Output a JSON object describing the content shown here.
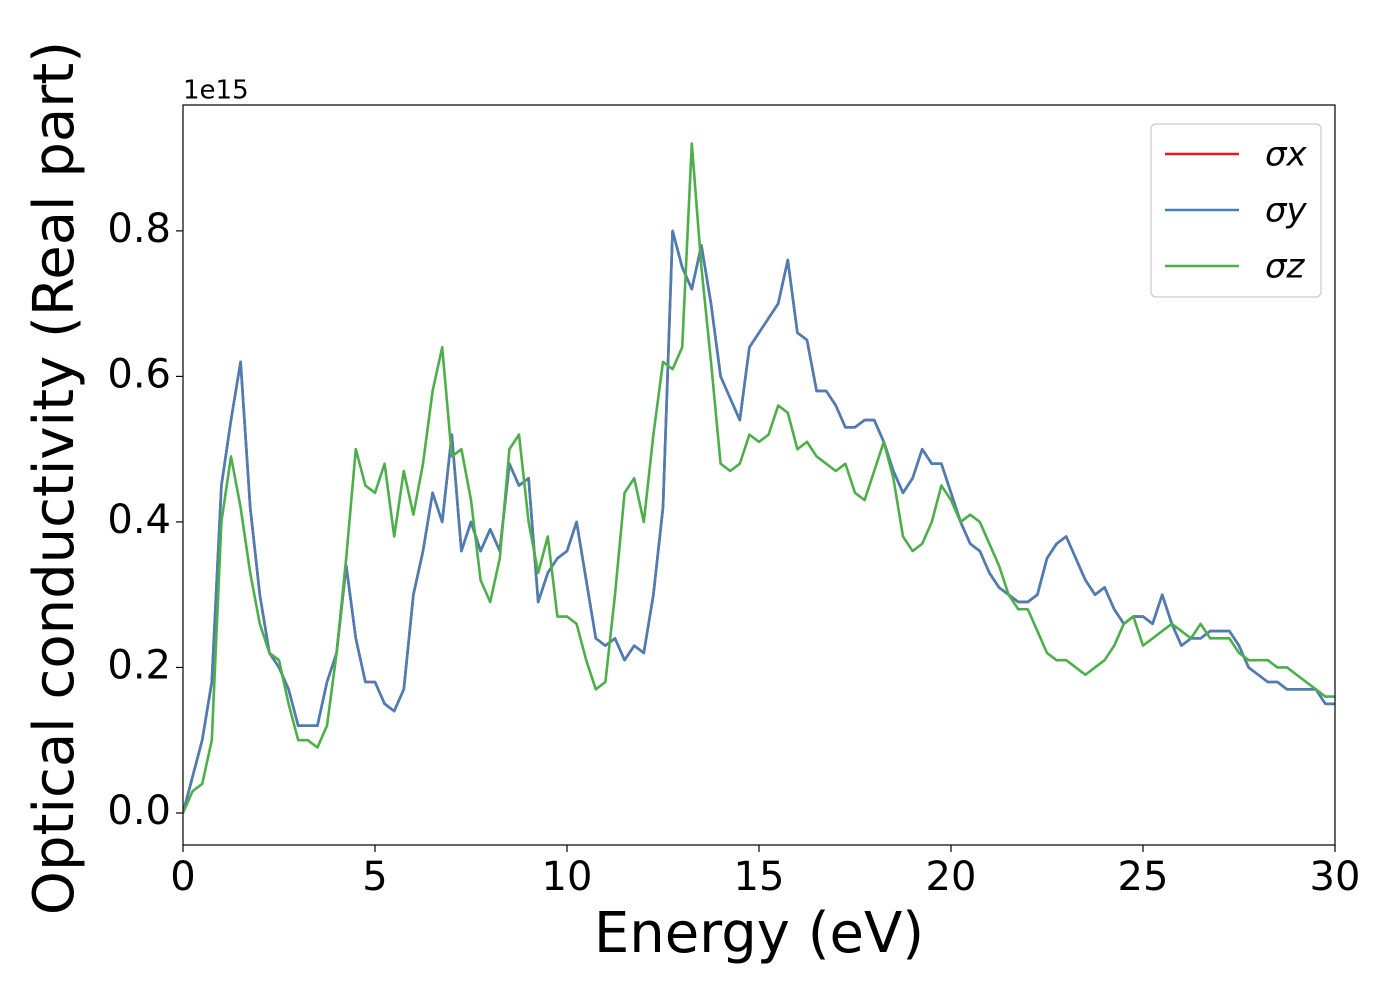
{
  "chart_data": {
    "type": "line",
    "xlabel": "Energy (eV)",
    "ylabel": "Optical conductivity (Real part)",
    "offset_text": "1e15",
    "x": [
      0,
      0.25,
      0.5,
      0.75,
      1,
      1.25,
      1.5,
      1.75,
      2,
      2.25,
      2.5,
      2.75,
      3,
      3.25,
      3.5,
      3.75,
      4,
      4.25,
      4.5,
      4.75,
      5,
      5.25,
      5.5,
      5.75,
      6,
      6.25,
      6.5,
      6.75,
      7,
      7.25,
      7.5,
      7.75,
      8,
      8.25,
      8.5,
      8.75,
      9,
      9.25,
      9.5,
      9.75,
      10,
      10.25,
      10.5,
      10.75,
      11,
      11.25,
      11.5,
      11.75,
      12,
      12.25,
      12.5,
      12.75,
      13,
      13.25,
      13.5,
      13.75,
      14,
      14.25,
      14.5,
      14.75,
      15,
      15.25,
      15.5,
      15.75,
      16,
      16.25,
      16.5,
      16.75,
      17,
      17.25,
      17.5,
      17.75,
      18,
      18.25,
      18.5,
      18.75,
      19,
      19.25,
      19.5,
      19.75,
      20,
      20.25,
      20.5,
      20.75,
      21,
      21.25,
      21.5,
      21.75,
      22,
      22.25,
      22.5,
      22.75,
      23,
      23.25,
      23.5,
      23.75,
      24,
      24.25,
      24.5,
      24.75,
      25,
      25.25,
      25.5,
      25.75,
      26,
      26.25,
      26.5,
      26.75,
      27,
      27.25,
      27.5,
      27.75,
      28,
      28.25,
      28.5,
      28.75,
      29,
      29.25,
      29.5,
      29.75,
      30
    ],
    "series": [
      {
        "name": "σx",
        "color": "#e41a1c",
        "values": [
          0.0,
          0.05,
          0.1,
          0.18,
          0.45,
          0.54,
          0.62,
          0.42,
          0.3,
          0.22,
          0.2,
          0.17,
          0.12,
          0.12,
          0.12,
          0.18,
          0.22,
          0.34,
          0.24,
          0.18,
          0.18,
          0.15,
          0.14,
          0.17,
          0.3,
          0.36,
          0.44,
          0.4,
          0.52,
          0.36,
          0.4,
          0.36,
          0.39,
          0.36,
          0.48,
          0.45,
          0.46,
          0.29,
          0.33,
          0.35,
          0.36,
          0.4,
          0.32,
          0.24,
          0.23,
          0.24,
          0.21,
          0.23,
          0.22,
          0.3,
          0.42,
          0.8,
          0.75,
          0.72,
          0.78,
          0.7,
          0.6,
          0.57,
          0.54,
          0.64,
          0.66,
          0.68,
          0.7,
          0.76,
          0.66,
          0.65,
          0.58,
          0.58,
          0.56,
          0.53,
          0.53,
          0.54,
          0.54,
          0.51,
          0.47,
          0.44,
          0.46,
          0.5,
          0.48,
          0.48,
          0.44,
          0.4,
          0.37,
          0.36,
          0.33,
          0.31,
          0.3,
          0.29,
          0.29,
          0.3,
          0.35,
          0.37,
          0.38,
          0.35,
          0.32,
          0.3,
          0.31,
          0.28,
          0.26,
          0.27,
          0.27,
          0.26,
          0.3,
          0.26,
          0.23,
          0.24,
          0.24,
          0.25,
          0.25,
          0.25,
          0.23,
          0.2,
          0.19,
          0.18,
          0.18,
          0.17,
          0.17,
          0.17,
          0.17,
          0.15,
          0.15
        ]
      },
      {
        "name": "σy",
        "color": "#4a7fb5",
        "values": [
          0.0,
          0.05,
          0.1,
          0.18,
          0.45,
          0.54,
          0.62,
          0.42,
          0.3,
          0.22,
          0.2,
          0.17,
          0.12,
          0.12,
          0.12,
          0.18,
          0.22,
          0.34,
          0.24,
          0.18,
          0.18,
          0.15,
          0.14,
          0.17,
          0.3,
          0.36,
          0.44,
          0.4,
          0.52,
          0.36,
          0.4,
          0.36,
          0.39,
          0.36,
          0.48,
          0.45,
          0.46,
          0.29,
          0.33,
          0.35,
          0.36,
          0.4,
          0.32,
          0.24,
          0.23,
          0.24,
          0.21,
          0.23,
          0.22,
          0.3,
          0.42,
          0.8,
          0.75,
          0.72,
          0.78,
          0.7,
          0.6,
          0.57,
          0.54,
          0.64,
          0.66,
          0.68,
          0.7,
          0.76,
          0.66,
          0.65,
          0.58,
          0.58,
          0.56,
          0.53,
          0.53,
          0.54,
          0.54,
          0.51,
          0.47,
          0.44,
          0.46,
          0.5,
          0.48,
          0.48,
          0.44,
          0.4,
          0.37,
          0.36,
          0.33,
          0.31,
          0.3,
          0.29,
          0.29,
          0.3,
          0.35,
          0.37,
          0.38,
          0.35,
          0.32,
          0.3,
          0.31,
          0.28,
          0.26,
          0.27,
          0.27,
          0.26,
          0.3,
          0.26,
          0.23,
          0.24,
          0.24,
          0.25,
          0.25,
          0.25,
          0.23,
          0.2,
          0.19,
          0.18,
          0.18,
          0.17,
          0.17,
          0.17,
          0.17,
          0.15,
          0.15
        ]
      },
      {
        "name": "σz",
        "color": "#4daf4a",
        "values": [
          0.0,
          0.03,
          0.04,
          0.1,
          0.4,
          0.49,
          0.42,
          0.33,
          0.26,
          0.22,
          0.21,
          0.15,
          0.1,
          0.1,
          0.09,
          0.12,
          0.22,
          0.35,
          0.5,
          0.45,
          0.44,
          0.48,
          0.38,
          0.47,
          0.41,
          0.48,
          0.58,
          0.64,
          0.49,
          0.5,
          0.43,
          0.32,
          0.29,
          0.35,
          0.5,
          0.52,
          0.4,
          0.33,
          0.38,
          0.27,
          0.27,
          0.26,
          0.21,
          0.17,
          0.18,
          0.3,
          0.44,
          0.46,
          0.4,
          0.52,
          0.62,
          0.61,
          0.64,
          0.92,
          0.75,
          0.62,
          0.48,
          0.47,
          0.48,
          0.52,
          0.51,
          0.52,
          0.56,
          0.55,
          0.5,
          0.51,
          0.49,
          0.48,
          0.47,
          0.48,
          0.44,
          0.43,
          0.47,
          0.51,
          0.46,
          0.38,
          0.36,
          0.37,
          0.4,
          0.45,
          0.43,
          0.4,
          0.41,
          0.4,
          0.37,
          0.34,
          0.3,
          0.28,
          0.28,
          0.25,
          0.22,
          0.21,
          0.21,
          0.2,
          0.19,
          0.2,
          0.21,
          0.23,
          0.26,
          0.27,
          0.23,
          0.24,
          0.25,
          0.26,
          0.25,
          0.24,
          0.26,
          0.24,
          0.24,
          0.24,
          0.22,
          0.21,
          0.21,
          0.21,
          0.2,
          0.2,
          0.19,
          0.18,
          0.17,
          0.16,
          0.16
        ]
      }
    ],
    "xlim": [
      0,
      30
    ],
    "ylim": [
      -0.044,
      0.973
    ],
    "xticks": [
      0,
      5,
      10,
      15,
      20,
      25,
      30
    ],
    "yticks": [
      {
        "value": 0,
        "label": "0.0"
      },
      0.2,
      0.4,
      0.6,
      0.8
    ],
    "legend": "upper right"
  }
}
